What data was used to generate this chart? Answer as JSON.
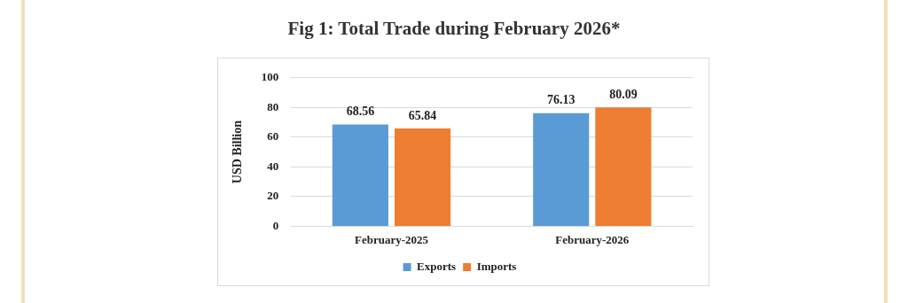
{
  "chart_data": {
    "type": "bar",
    "title": "Fig 1: Total Trade during February 2026*",
    "ylabel": "USD Billion",
    "categories": [
      "February-2025",
      "February-2026"
    ],
    "series": [
      {
        "name": "Exports",
        "color": "#5b9bd5",
        "values": [
          68.56,
          76.13
        ]
      },
      {
        "name": "Imports",
        "color": "#ed7d31",
        "values": [
          65.84,
          80.09
        ]
      }
    ],
    "ylim": [
      0,
      100
    ],
    "yticks": [
      0,
      20,
      40,
      60,
      80,
      100
    ],
    "grid": "y",
    "legend": "bottom",
    "data_labels": true
  }
}
